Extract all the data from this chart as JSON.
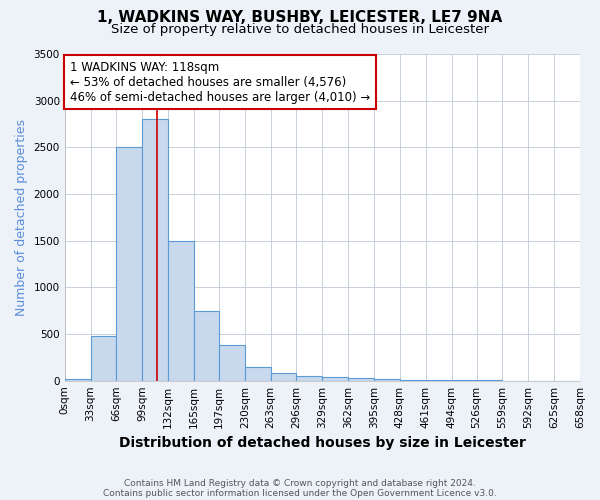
{
  "title": "1, WADKINS WAY, BUSHBY, LEICESTER, LE7 9NA",
  "subtitle": "Size of property relative to detached houses in Leicester",
  "xlabel": "Distribution of detached houses by size in Leicester",
  "ylabel": "Number of detached properties",
  "footnote1": "Contains HM Land Registry data © Crown copyright and database right 2024.",
  "footnote2": "Contains public sector information licensed under the Open Government Licence v3.0.",
  "bin_edges": [
    0,
    33,
    66,
    99,
    132,
    165,
    197,
    230,
    263,
    296,
    329,
    362,
    395,
    428,
    461,
    494,
    526,
    559,
    592,
    625,
    658
  ],
  "bin_labels": [
    "0sqm",
    "33sqm",
    "66sqm",
    "99sqm",
    "132sqm",
    "165sqm",
    "197sqm",
    "230sqm",
    "263sqm",
    "296sqm",
    "329sqm",
    "362sqm",
    "395sqm",
    "428sqm",
    "461sqm",
    "494sqm",
    "526sqm",
    "559sqm",
    "592sqm",
    "625sqm",
    "658sqm"
  ],
  "counts": [
    20,
    480,
    2500,
    2800,
    1500,
    750,
    380,
    150,
    80,
    55,
    40,
    25,
    20,
    8,
    5,
    3,
    2,
    1,
    1,
    1
  ],
  "bar_color": "#c8d9ed",
  "bar_edge_color": "#5b9bd5",
  "property_line_x": 118,
  "property_line_color": "#cc0000",
  "annotation_line1": "1 WADKINS WAY: 118sqm",
  "annotation_line2": "← 53% of detached houses are smaller (4,576)",
  "annotation_line3": "46% of semi-detached houses are larger (4,010) →",
  "annotation_box_color": "#cc0000",
  "ylim": [
    0,
    3500
  ],
  "yticks": [
    0,
    500,
    1000,
    1500,
    2000,
    2500,
    3000,
    3500
  ],
  "bg_color": "#edf2f9",
  "plot_bg_color": "#edf2f9",
  "plot_inner_color": "#ffffff",
  "grid_color": "#c8d0dc",
  "title_fontsize": 11,
  "subtitle_fontsize": 9.5,
  "ylabel_fontsize": 9,
  "xlabel_fontsize": 10,
  "tick_fontsize": 7.5
}
